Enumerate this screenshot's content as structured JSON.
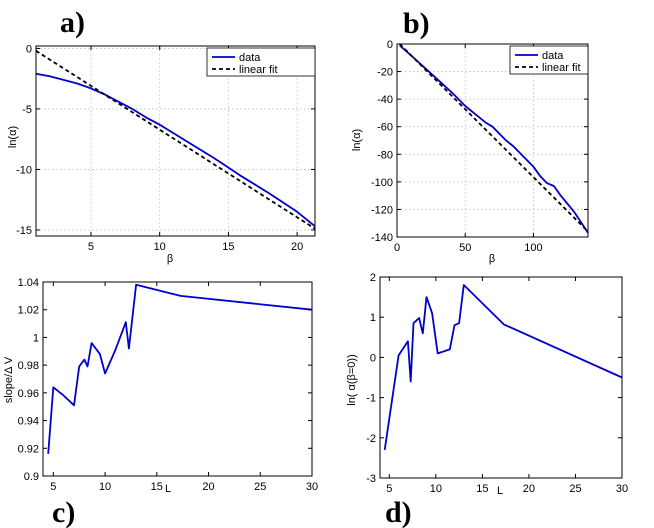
{
  "chart_data": [
    {
      "id": "a",
      "panel_label": "a)",
      "type": "line",
      "xlabel": "β",
      "ylabel": "ln(α)",
      "xlim": [
        1,
        21.3
      ],
      "ylim": [
        -15.5,
        0.2
      ],
      "xticks": [
        5,
        10,
        15,
        20
      ],
      "yticks": [
        0,
        -5,
        -10,
        -15
      ],
      "grid": true,
      "legend": {
        "placement": "top-right",
        "entries": [
          "data",
          "linear fit"
        ]
      },
      "series": [
        {
          "name": "data",
          "style": "solid",
          "color": "#0000cc",
          "x": [
            1,
            2,
            3,
            4,
            5,
            6,
            7,
            8,
            9,
            10,
            12,
            14,
            16,
            18,
            20,
            21.3
          ],
          "y": [
            -2.1,
            -2.3,
            -2.6,
            -2.9,
            -3.3,
            -3.8,
            -4.4,
            -5.0,
            -5.7,
            -6.3,
            -7.7,
            -9.1,
            -10.6,
            -12.0,
            -13.5,
            -14.7
          ]
        },
        {
          "name": "linear fit",
          "style": "dashed",
          "color": "#000000",
          "x": [
            1,
            21.3
          ],
          "y": [
            -0.2,
            -14.9
          ]
        }
      ]
    },
    {
      "id": "b",
      "panel_label": "b)",
      "type": "line",
      "xlabel": "β",
      "ylabel": "ln(α)",
      "xlim": [
        0,
        140
      ],
      "ylim": [
        -140,
        0
      ],
      "xticks": [
        0,
        50,
        100
      ],
      "yticks": [
        0,
        -20,
        -40,
        -60,
        -80,
        -100,
        -120,
        -140
      ],
      "grid": true,
      "legend": {
        "placement": "top-right",
        "entries": [
          "data",
          "linear fit"
        ]
      },
      "series": [
        {
          "name": "data",
          "style": "solid",
          "color": "#0000cc",
          "x": [
            2,
            10,
            20,
            30,
            40,
            50,
            60,
            65,
            70,
            80,
            85,
            90,
            100,
            105,
            110,
            115,
            120,
            130,
            140
          ],
          "y": [
            -1,
            -8,
            -17,
            -26,
            -35,
            -45,
            -53,
            -57,
            -60,
            -70,
            -74,
            -79,
            -89,
            -96,
            -101,
            -103,
            -110,
            -122,
            -137
          ]
        },
        {
          "name": "linear fit",
          "style": "dashed",
          "color": "#000000",
          "x": [
            2,
            140
          ],
          "y": [
            0,
            -136
          ]
        }
      ]
    },
    {
      "id": "c",
      "panel_label": "c)",
      "type": "line",
      "xlabel": "L",
      "ylabel": "slope/Δ V",
      "xlim": [
        4,
        30
      ],
      "ylim": [
        0.9,
        1.04
      ],
      "xticks": [
        5,
        10,
        15,
        20,
        25,
        30
      ],
      "yticks": [
        0.9,
        0.92,
        0.94,
        0.96,
        0.98,
        1,
        1.02,
        1.04
      ],
      "grid": false,
      "series": [
        {
          "name": "",
          "style": "solid",
          "color": "#0000cc",
          "x": [
            4.5,
            5,
            6,
            7,
            7.5,
            8,
            8.3,
            8.7,
            9.5,
            10,
            11,
            12,
            12.3,
            13,
            17.3,
            30
          ],
          "y": [
            0.916,
            0.964,
            0.958,
            0.951,
            0.979,
            0.984,
            0.979,
            0.996,
            0.988,
            0.974,
            0.991,
            1.011,
            0.992,
            1.038,
            1.03,
            1.02
          ]
        }
      ]
    },
    {
      "id": "d",
      "panel_label": "d)",
      "type": "line",
      "xlabel": "L",
      "ylabel": "ln(  α(β=0))",
      "xlim": [
        4,
        30
      ],
      "ylim": [
        -3,
        2
      ],
      "xticks": [
        5,
        10,
        15,
        20,
        25,
        30
      ],
      "yticks": [
        2,
        1,
        0,
        -1,
        -2,
        -3
      ],
      "grid": false,
      "series": [
        {
          "name": "",
          "style": "solid",
          "color": "#0000cc",
          "x": [
            4.5,
            6,
            7,
            7.3,
            7.6,
            8.2,
            8.6,
            9,
            9.6,
            10.2,
            11.5,
            12,
            12.5,
            13,
            17.3,
            30
          ],
          "y": [
            -2.3,
            0.05,
            0.4,
            -0.6,
            0.85,
            0.98,
            0.6,
            1.5,
            1.1,
            0.1,
            0.2,
            0.8,
            0.85,
            1.8,
            0.82,
            -0.5
          ]
        }
      ]
    }
  ]
}
